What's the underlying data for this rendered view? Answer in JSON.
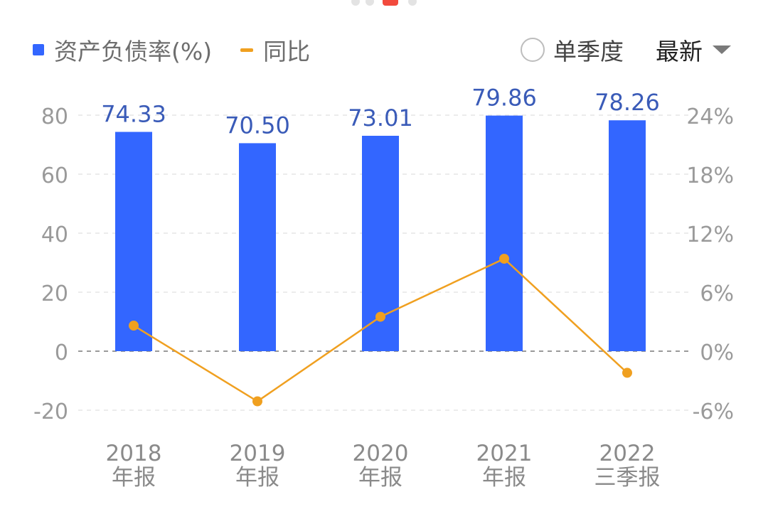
{
  "legend": {
    "bar_label": "资产负债率(%)",
    "line_label": "同比"
  },
  "controls": {
    "quarter_toggle_label": "单季度",
    "period_select_label": "最新"
  },
  "colors": {
    "bar": "#3366ff",
    "line": "#f0a020",
    "value_label": "#3a5bb8",
    "axis_text": "#9a9a9a",
    "pager_active": "#f24a3d"
  },
  "chart_data": {
    "type": "bar",
    "categories": [
      "2018年报",
      "2019年报",
      "2020年报",
      "2021年报",
      "2022三季报"
    ],
    "category_lines": [
      [
        "2018",
        "年报"
      ],
      [
        "2019",
        "年报"
      ],
      [
        "2020",
        "年报"
      ],
      [
        "2021",
        "年报"
      ],
      [
        "2022",
        "三季报"
      ]
    ],
    "series": [
      {
        "name": "资产负债率(%)",
        "type": "bar",
        "axis": "left",
        "values": [
          74.33,
          70.5,
          73.01,
          79.86,
          78.26
        ],
        "labels": [
          "74.33",
          "70.50",
          "73.01",
          "79.86",
          "78.26"
        ]
      },
      {
        "name": "同比",
        "type": "line",
        "axis": "right",
        "values": [
          2.6,
          -5.1,
          3.5,
          9.4,
          -2.2
        ]
      }
    ],
    "y_left": {
      "ticks": [
        80,
        60,
        40,
        20,
        0,
        -20
      ],
      "ylim": [
        -20,
        80
      ]
    },
    "y_right": {
      "ticks": [
        "24%",
        "18%",
        "12%",
        "6%",
        "0%",
        "-6%"
      ],
      "values": [
        24,
        18,
        12,
        6,
        0,
        -6
      ],
      "ylim": [
        -6,
        24
      ]
    },
    "grid": true,
    "zero_line_dashed": true
  }
}
